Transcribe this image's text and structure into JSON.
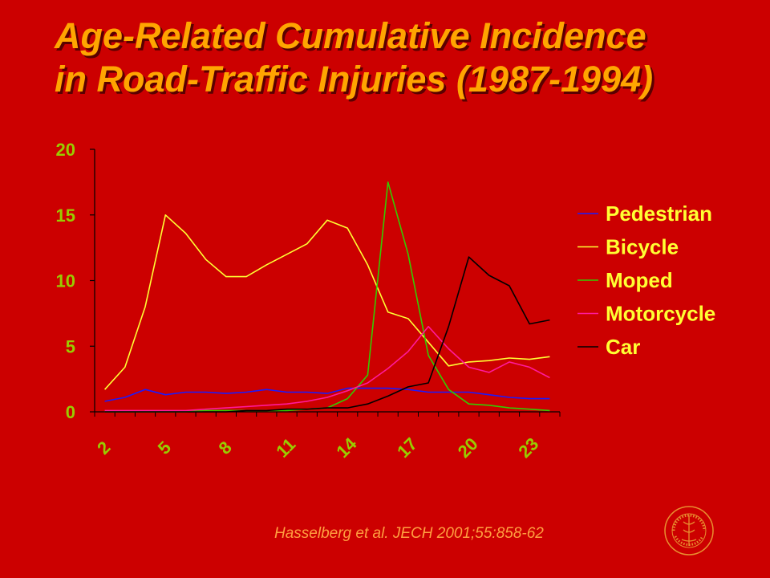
{
  "title": {
    "line1": "Age-Related Cumulative Incidence",
    "line2": "in Road-Traffic Injuries (1987-1994)"
  },
  "citation": "Hasselberg et al. JECH 2001;55:858-62",
  "colors": {
    "background": "#cc0000",
    "title": "#ffa500",
    "axis_text": "#99cc00",
    "legend_text": "#ffff33"
  },
  "logo": {
    "name": "university-seal"
  },
  "chart_data": {
    "type": "line",
    "xlabel": "",
    "ylabel": "",
    "x": [
      2,
      3,
      4,
      5,
      6,
      7,
      8,
      9,
      10,
      11,
      12,
      13,
      14,
      15,
      16,
      17,
      18,
      19,
      20,
      21,
      22,
      23,
      24
    ],
    "x_ticks": [
      "2",
      "5",
      "8",
      "11",
      "14",
      "17",
      "20",
      "23"
    ],
    "y_ticks": [
      "0",
      "5",
      "10",
      "15",
      "20"
    ],
    "ylim": [
      0,
      20
    ],
    "legend_position": "right",
    "grid": false,
    "series": [
      {
        "name": "Pedestrian",
        "color": "#1a1aff",
        "values": [
          0.8,
          1.1,
          1.7,
          1.3,
          1.5,
          1.5,
          1.4,
          1.5,
          1.7,
          1.5,
          1.5,
          1.4,
          1.8,
          1.8,
          1.8,
          1.7,
          1.5,
          1.5,
          1.5,
          1.3,
          1.1,
          1.0,
          1.0
        ]
      },
      {
        "name": "Bicycle",
        "color": "#ffff33",
        "values": [
          1.7,
          3.4,
          8.0,
          15.0,
          13.6,
          11.6,
          10.3,
          10.3,
          11.2,
          12.0,
          12.8,
          14.6,
          14.0,
          11.2,
          7.6,
          7.1,
          5.3,
          3.5,
          3.8,
          3.9,
          4.1,
          4.0,
          4.2
        ]
      },
      {
        "name": "Moped",
        "color": "#33cc00",
        "values": [
          0.0,
          0.0,
          0.0,
          0.0,
          0.0,
          0.1,
          0.1,
          0.1,
          0.1,
          0.1,
          0.2,
          0.3,
          1.0,
          2.8,
          17.5,
          12.0,
          4.3,
          1.7,
          0.6,
          0.5,
          0.3,
          0.2,
          0.1
        ]
      },
      {
        "name": "Motorcycle",
        "color": "#ff1a9c",
        "values": [
          0.1,
          0.1,
          0.1,
          0.1,
          0.1,
          0.2,
          0.3,
          0.4,
          0.5,
          0.6,
          0.8,
          1.1,
          1.6,
          2.2,
          3.3,
          4.6,
          6.5,
          4.8,
          3.4,
          3.0,
          3.8,
          3.4,
          2.6
        ]
      },
      {
        "name": "Car",
        "color": "#000000",
        "values": [
          0.0,
          0.0,
          0.0,
          0.0,
          0.0,
          0.0,
          0.0,
          0.1,
          0.1,
          0.2,
          0.2,
          0.3,
          0.3,
          0.6,
          1.2,
          1.9,
          2.2,
          6.5,
          11.8,
          10.4,
          9.6,
          6.7,
          7.0
        ]
      }
    ]
  }
}
